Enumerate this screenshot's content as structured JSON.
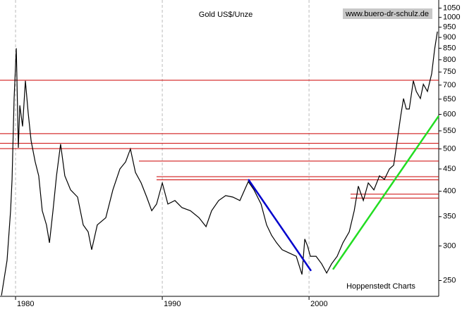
{
  "chart_data": {
    "type": "line",
    "title": "Gold US$/Unze",
    "watermark": "www.buero-dr-schulz.de",
    "source": "Hoppenstedt Charts",
    "color": "#000000",
    "x": [
      1979.04,
      1979.42,
      1979.66,
      1979.76,
      1979.9,
      1980.05,
      1980.19,
      1980.29,
      1980.48,
      1980.67,
      1980.86,
      1981.06,
      1981.34,
      1981.58,
      1981.82,
      1982.11,
      1982.31,
      1982.55,
      1982.79,
      1983.07,
      1983.36,
      1983.75,
      1984.23,
      1984.61,
      1984.95,
      1985.19,
      1985.57,
      1986.15,
      1986.63,
      1987.11,
      1987.5,
      1987.83,
      1988.17,
      1988.56,
      1988.94,
      1989.28,
      1989.61,
      1990.0,
      1990.38,
      1990.86,
      1991.34,
      1991.92,
      1992.5,
      1992.98,
      1993.36,
      1993.84,
      1994.32,
      1994.81,
      1995.29,
      1995.86,
      1996.25,
      1996.73,
      1997.11,
      1997.45,
      1997.79,
      1998.17,
      1998.65,
      1999.13,
      1999.52,
      1999.71,
      1999.9,
      2000.09,
      2000.48,
      2000.86,
      2001.2,
      2001.54,
      2001.92,
      2002.31,
      2002.74,
      2003.08,
      2003.36,
      2003.7,
      2004.04,
      2004.42,
      2004.8,
      2005.14,
      2005.48,
      2005.77,
      2006.01,
      2006.25,
      2006.44,
      2006.63,
      2006.83,
      2007.11,
      2007.31,
      2007.59,
      2007.79,
      2008.07,
      2008.36,
      2008.56,
      2008.75
    ],
    "values": [
      231,
      278,
      361,
      426,
      652,
      850,
      503,
      629,
      563,
      716,
      606,
      522,
      467,
      434,
      361,
      335,
      305,
      361,
      434,
      513,
      434,
      403,
      388,
      335,
      323,
      294,
      335,
      348,
      403,
      450,
      467,
      500,
      442,
      418,
      388,
      361,
      374,
      418,
      374,
      381,
      367,
      361,
      348,
      332,
      361,
      381,
      391,
      388,
      381,
      421,
      403,
      374,
      335,
      317,
      305,
      294,
      289,
      284,
      258,
      311,
      300,
      284,
      284,
      273,
      260,
      273,
      284,
      305,
      323,
      361,
      411,
      381,
      418,
      403,
      434,
      426,
      450,
      459,
      522,
      595,
      652,
      617,
      617,
      716,
      677,
      652,
      703,
      677,
      743,
      846,
      928
    ],
    "xlim": [
      1978.94,
      2008.84
    ],
    "xticks": [
      1980,
      1990,
      2000
    ],
    "ylim": [
      230,
      1096
    ],
    "yticks": [
      250,
      300,
      350,
      400,
      450,
      500,
      550,
      600,
      650,
      700,
      750,
      800,
      850,
      900,
      950,
      1000,
      1050
    ],
    "log_scale": true,
    "grid": true,
    "reference_lines": [
      {
        "value": 718,
        "from": 1978.94,
        "color": "#cc0000"
      },
      {
        "value": 542,
        "from": 1978.94,
        "color": "#cc0000"
      },
      {
        "value": 515,
        "from": 1978.94,
        "color": "#cc0000"
      },
      {
        "value": 501,
        "from": 1978.94,
        "color": "#cc0000"
      },
      {
        "value": 469,
        "from": 1988.41,
        "color": "#cc0000"
      },
      {
        "value": 432,
        "from": 1989.61,
        "color": "#cc0000"
      },
      {
        "value": 425,
        "from": 1989.61,
        "color": "#cc0000"
      },
      {
        "value": 394,
        "from": 2002.83,
        "color": "#cc0000"
      },
      {
        "value": 386,
        "from": 2002.83,
        "color": "#cc0000"
      }
    ],
    "trendlines": [
      {
        "color": "#0000cc",
        "x": [
          1995.86,
          2000.14
        ],
        "values": [
          426,
          263
        ]
      },
      {
        "color": "#22dd22",
        "x": [
          2001.63,
          2008.84
        ],
        "values": [
          265,
          595
        ]
      }
    ]
  }
}
